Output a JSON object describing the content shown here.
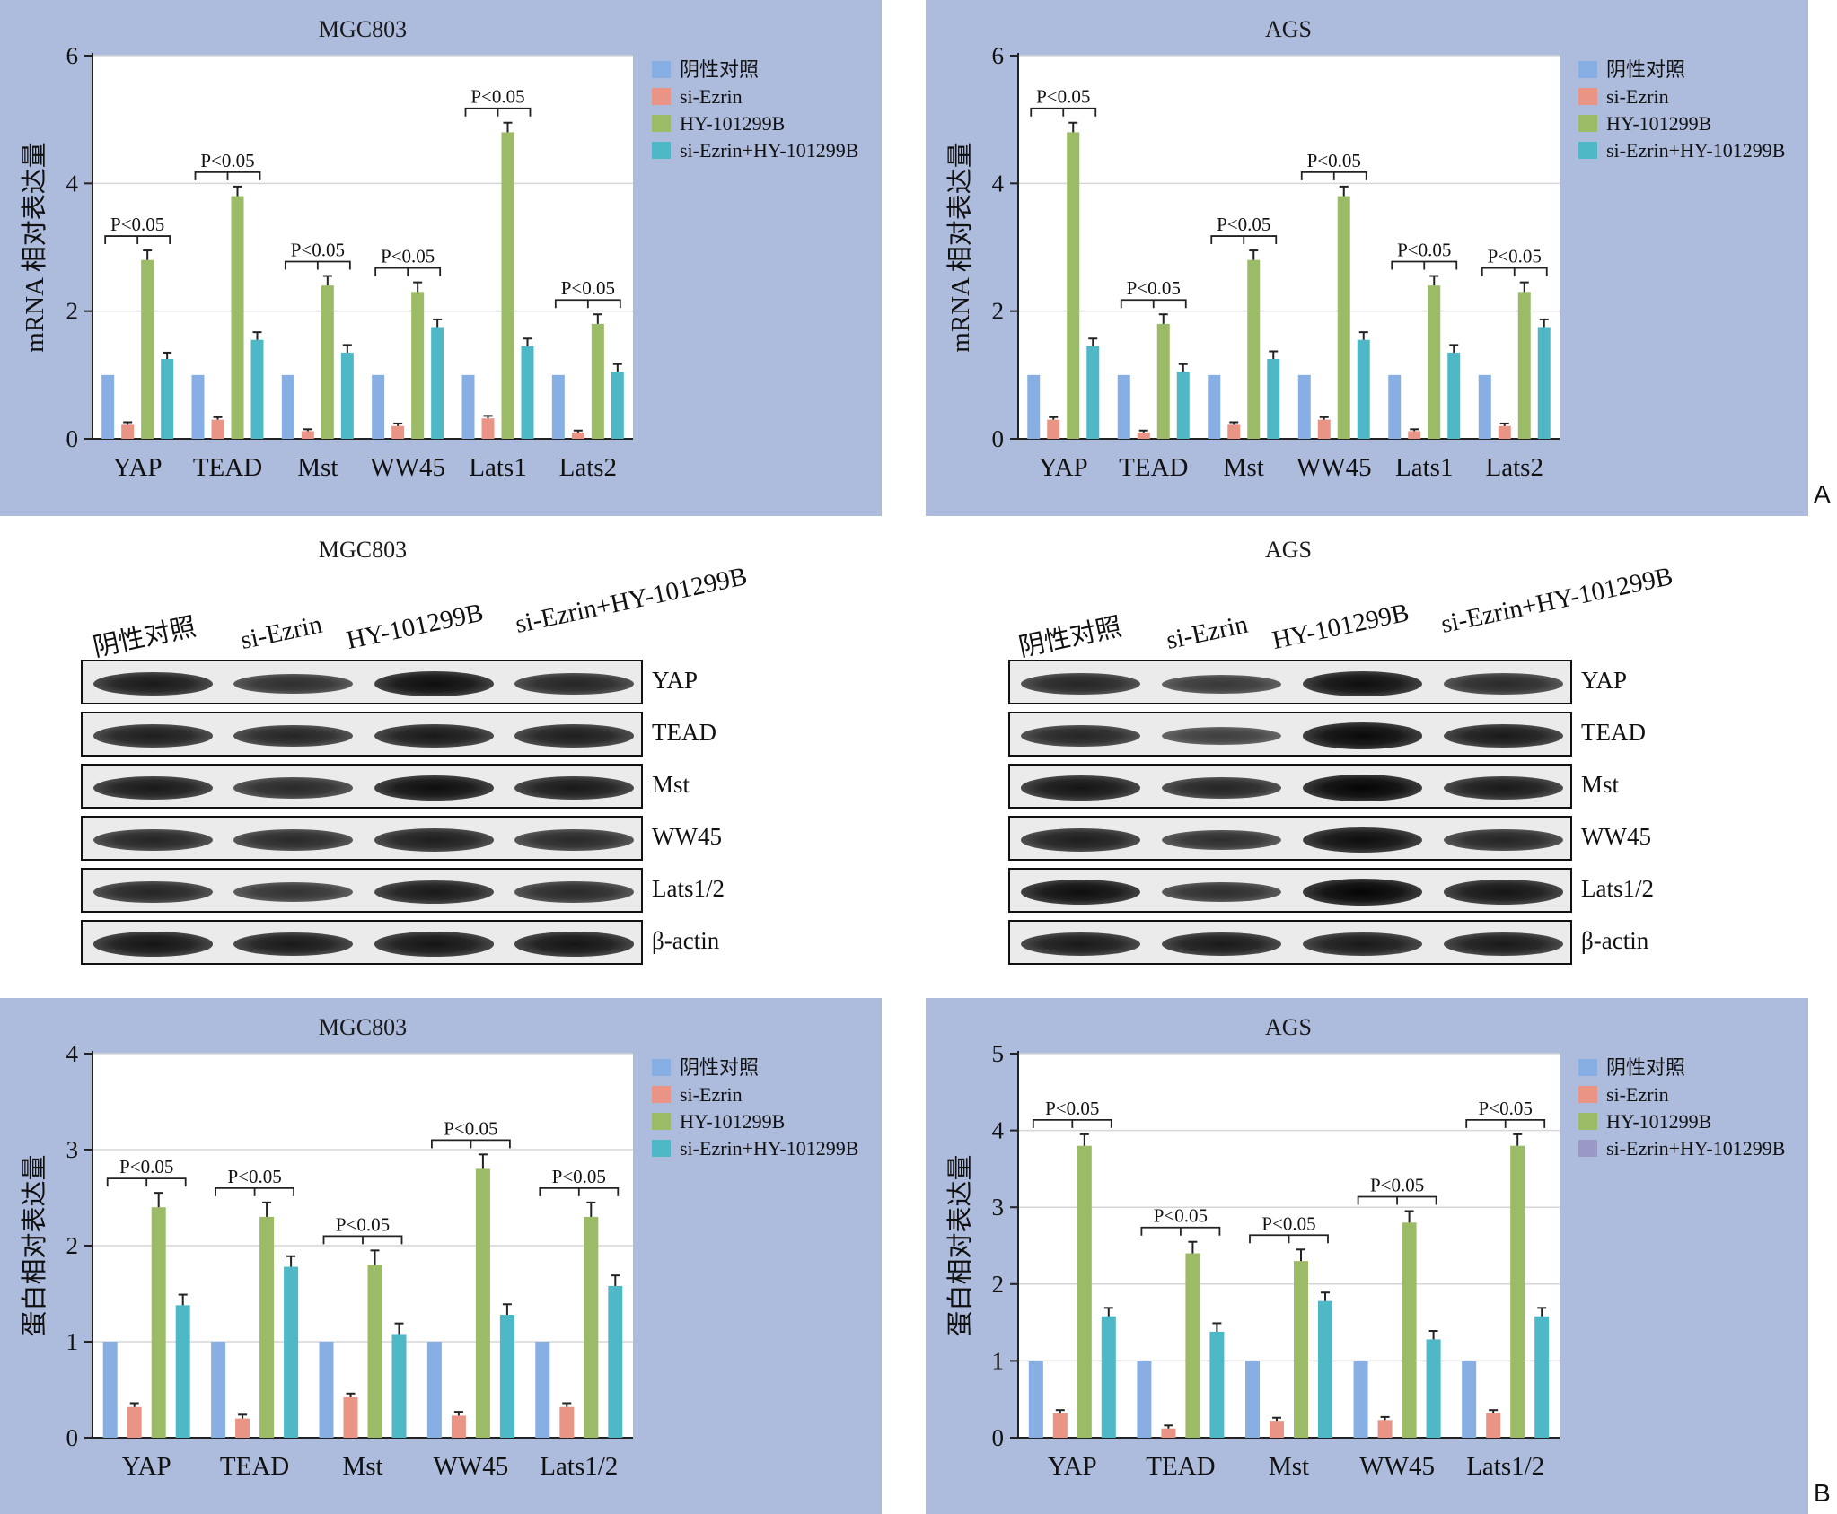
{
  "legend_labels": [
    "阴性对照",
    "si-Ezrin",
    "HY-101299B",
    "si-Ezrin+HY-101299B"
  ],
  "panel_letters": {
    "a": "A",
    "b": "B"
  },
  "colors": {
    "control": "#87afe3",
    "si": "#ea9485",
    "hy": "#9bbb66",
    "combo": "#4eb8c6",
    "combo_alt": "#9a98c7",
    "panel_bg": "#adbbdd"
  },
  "chart_data": [
    {
      "type": "bar",
      "title": "MGC803",
      "ylabel": "mRNA 相对表达量",
      "ylim": [
        0,
        6
      ],
      "yticks": [
        0,
        2,
        4,
        6
      ],
      "categories": [
        "YAP",
        "TEAD",
        "Mst",
        "WW45",
        "Lats1",
        "Lats2"
      ],
      "series": [
        {
          "name": "阴性对照",
          "values": [
            1,
            1,
            1,
            1,
            1,
            1
          ],
          "errors": [
            0,
            0,
            0,
            0,
            0,
            0
          ]
        },
        {
          "name": "si-Ezrin",
          "values": [
            0.22,
            0.3,
            0.12,
            0.2,
            0.32,
            0.1
          ],
          "errors": [
            0.04,
            0.04,
            0.03,
            0.04,
            0.04,
            0.03
          ]
        },
        {
          "name": "HY-101299B",
          "values": [
            2.8,
            3.8,
            2.4,
            2.3,
            4.8,
            1.8
          ],
          "errors": [
            0.15,
            0.15,
            0.15,
            0.15,
            0.15,
            0.15
          ]
        },
        {
          "name": "si-Ezrin+HY-101299B",
          "values": [
            1.25,
            1.55,
            1.35,
            1.75,
            1.45,
            1.05
          ],
          "errors": [
            0.1,
            0.12,
            0.12,
            0.12,
            0.12,
            0.12
          ]
        }
      ],
      "annotations": [
        {
          "category": "YAP",
          "text": "P<0.05"
        },
        {
          "category": "TEAD",
          "text": "P<0.05"
        },
        {
          "category": "Mst",
          "text": "P<0.05"
        },
        {
          "category": "WW45",
          "text": "P<0.05"
        },
        {
          "category": "Lats1",
          "text": "P<0.05"
        },
        {
          "category": "Lats2",
          "text": "P<0.05"
        }
      ],
      "legend": "top-right",
      "grid": "horizontal"
    },
    {
      "type": "bar",
      "title": "AGS",
      "ylabel": "mRNA 相对表达量",
      "ylim": [
        0,
        6
      ],
      "yticks": [
        0,
        2,
        4,
        6
      ],
      "categories": [
        "YAP",
        "TEAD",
        "Mst",
        "WW45",
        "Lats1",
        "Lats2"
      ],
      "series": [
        {
          "name": "阴性对照",
          "values": [
            1,
            1,
            1,
            1,
            1,
            1
          ],
          "errors": [
            0,
            0,
            0,
            0,
            0,
            0
          ]
        },
        {
          "name": "si-Ezrin",
          "values": [
            0.3,
            0.1,
            0.22,
            0.3,
            0.12,
            0.2
          ],
          "errors": [
            0.04,
            0.03,
            0.04,
            0.04,
            0.03,
            0.04
          ]
        },
        {
          "name": "HY-101299B",
          "values": [
            4.8,
            1.8,
            2.8,
            3.8,
            2.4,
            2.3
          ],
          "errors": [
            0.15,
            0.15,
            0.15,
            0.15,
            0.15,
            0.15
          ]
        },
        {
          "name": "si-Ezrin+HY-101299B",
          "values": [
            1.45,
            1.05,
            1.25,
            1.55,
            1.35,
            1.75
          ],
          "errors": [
            0.12,
            0.12,
            0.12,
            0.12,
            0.12,
            0.12
          ]
        }
      ],
      "annotations": [
        {
          "category": "YAP",
          "text": "P<0.05"
        },
        {
          "category": "TEAD",
          "text": "P<0.05"
        },
        {
          "category": "Mst",
          "text": "P<0.05"
        },
        {
          "category": "WW45",
          "text": "P<0.05"
        },
        {
          "category": "Lats1",
          "text": "P<0.05"
        },
        {
          "category": "Lats2",
          "text": "P<0.05"
        }
      ],
      "legend": "top-right",
      "grid": "horizontal"
    },
    {
      "type": "bar",
      "title": "MGC803",
      "ylabel": "蛋白相对表达量",
      "ylim": [
        0,
        4
      ],
      "yticks": [
        0,
        1,
        2,
        3,
        4
      ],
      "categories": [
        "YAP",
        "TEAD",
        "Mst",
        "WW45",
        "Lats1/2"
      ],
      "series": [
        {
          "name": "阴性对照",
          "values": [
            1,
            1,
            1,
            1,
            1
          ],
          "errors": [
            0,
            0,
            0,
            0,
            0
          ]
        },
        {
          "name": "si-Ezrin",
          "values": [
            0.32,
            0.2,
            0.42,
            0.23,
            0.32
          ],
          "errors": [
            0.04,
            0.04,
            0.04,
            0.04,
            0.04
          ]
        },
        {
          "name": "HY-101299B",
          "values": [
            2.4,
            2.3,
            1.8,
            2.8,
            2.3
          ],
          "errors": [
            0.15,
            0.15,
            0.15,
            0.15,
            0.15
          ]
        },
        {
          "name": "si-Ezrin+HY-101299B",
          "values": [
            1.38,
            1.78,
            1.08,
            1.28,
            1.58
          ],
          "errors": [
            0.11,
            0.11,
            0.11,
            0.11,
            0.11
          ]
        }
      ],
      "annotations": [
        {
          "category": "YAP",
          "text": "P<0.05"
        },
        {
          "category": "TEAD",
          "text": "P<0.05"
        },
        {
          "category": "Mst",
          "text": "P<0.05"
        },
        {
          "category": "WW45",
          "text": "P<0.05"
        },
        {
          "category": "Lats1/2",
          "text": "P<0.05"
        }
      ],
      "legend": "top-right",
      "grid": "horizontal"
    },
    {
      "type": "bar",
      "title": "AGS",
      "ylabel": "蛋白相对表达量",
      "ylim": [
        0,
        5
      ],
      "yticks": [
        0,
        1,
        2,
        3,
        4,
        5
      ],
      "categories": [
        "YAP",
        "TEAD",
        "Mst",
        "WW45",
        "Lats1/2"
      ],
      "series": [
        {
          "name": "阴性对照",
          "values": [
            1,
            1,
            1,
            1,
            1
          ],
          "errors": [
            0,
            0,
            0,
            0,
            0
          ]
        },
        {
          "name": "si-Ezrin",
          "values": [
            0.32,
            0.12,
            0.22,
            0.23,
            0.32
          ],
          "errors": [
            0.04,
            0.04,
            0.04,
            0.04,
            0.04
          ]
        },
        {
          "name": "HY-101299B",
          "values": [
            3.8,
            2.4,
            2.3,
            2.8,
            3.8
          ],
          "errors": [
            0.15,
            0.15,
            0.15,
            0.15,
            0.15
          ]
        },
        {
          "name": "si-Ezrin+HY-101299B",
          "values": [
            1.58,
            1.38,
            1.78,
            1.28,
            1.58
          ],
          "errors": [
            0.11,
            0.11,
            0.11,
            0.11,
            0.11
          ]
        }
      ],
      "annotations": [
        {
          "category": "YAP",
          "text": "P<0.05"
        },
        {
          "category": "TEAD",
          "text": "P<0.05"
        },
        {
          "category": "Mst",
          "text": "P<0.05"
        },
        {
          "category": "WW45",
          "text": "P<0.05"
        },
        {
          "category": "Lats1/2",
          "text": "P<0.05"
        }
      ],
      "legend": "top-right",
      "grid": "horizontal"
    }
  ],
  "western_blots": [
    {
      "title": "MGC803",
      "lanes": [
        "阴性对照",
        "si-Ezrin",
        "HY-101299B",
        "si-Ezrin+HY-101299B"
      ],
      "proteins": [
        "YAP",
        "TEAD",
        "Mst",
        "WW45",
        "Lats1/2",
        "β-actin"
      ],
      "band_intensity": [
        [
          0.8,
          0.6,
          0.9,
          0.7
        ],
        [
          0.75,
          0.7,
          0.8,
          0.75
        ],
        [
          0.8,
          0.65,
          0.9,
          0.8
        ],
        [
          0.7,
          0.65,
          0.75,
          0.65
        ],
        [
          0.7,
          0.55,
          0.8,
          0.65
        ],
        [
          0.85,
          0.8,
          0.85,
          0.85
        ]
      ]
    },
    {
      "title": "AGS",
      "lanes": [
        "阴性对照",
        "si-Ezrin",
        "HY-101299B",
        "si-Ezrin+HY-101299B"
      ],
      "proteins": [
        "YAP",
        "TEAD",
        "Mst",
        "WW45",
        "Lats1/2",
        "β-actin"
      ],
      "band_intensity": [
        [
          0.7,
          0.5,
          0.9,
          0.65
        ],
        [
          0.7,
          0.45,
          0.95,
          0.8
        ],
        [
          0.85,
          0.7,
          1.0,
          0.8
        ],
        [
          0.75,
          0.6,
          0.9,
          0.7
        ],
        [
          0.9,
          0.6,
          1.0,
          0.85
        ],
        [
          0.8,
          0.8,
          0.8,
          0.8
        ]
      ]
    }
  ]
}
